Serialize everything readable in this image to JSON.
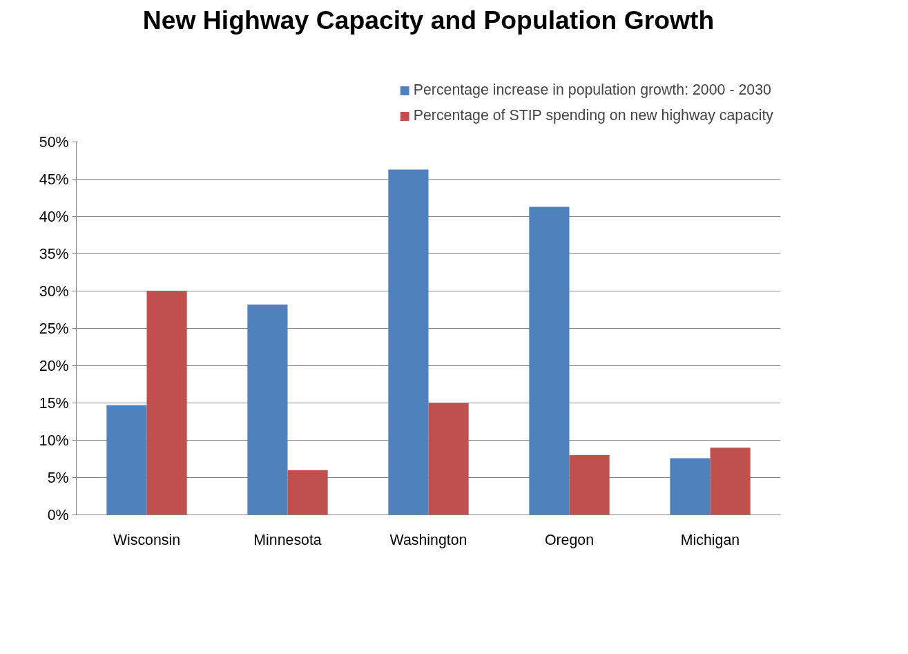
{
  "chart_data": {
    "type": "bar",
    "title": "New Highway Capacity and Population Growth",
    "categories": [
      "Wisconsin",
      "Minnesota",
      "Washington",
      "Oregon",
      "Michigan"
    ],
    "series": [
      {
        "name": "Percentage increase in population growth: 2000 - 2030",
        "color": "#4f81bd",
        "values": [
          14.7,
          28.2,
          46.3,
          41.3,
          7.6
        ]
      },
      {
        "name": "Percentage of STIP spending on new highway capacity",
        "color": "#c0504d",
        "values": [
          30.0,
          6.0,
          15.0,
          8.0,
          9.0
        ]
      }
    ],
    "ylim": [
      0,
      50
    ],
    "yticks": [
      {
        "value": 0,
        "label": "0%"
      },
      {
        "value": 5,
        "label": "5%"
      },
      {
        "value": 10,
        "label": "10%"
      },
      {
        "value": 15,
        "label": "15%"
      },
      {
        "value": 20,
        "label": "20%"
      },
      {
        "value": 25,
        "label": "25%"
      },
      {
        "value": 30,
        "label": "30%"
      },
      {
        "value": 35,
        "label": "35%"
      },
      {
        "value": 40,
        "label": "40%"
      },
      {
        "value": 45,
        "label": "45%"
      },
      {
        "value": 50,
        "label": "50%"
      }
    ],
    "grid": "y",
    "legend": "top right"
  }
}
